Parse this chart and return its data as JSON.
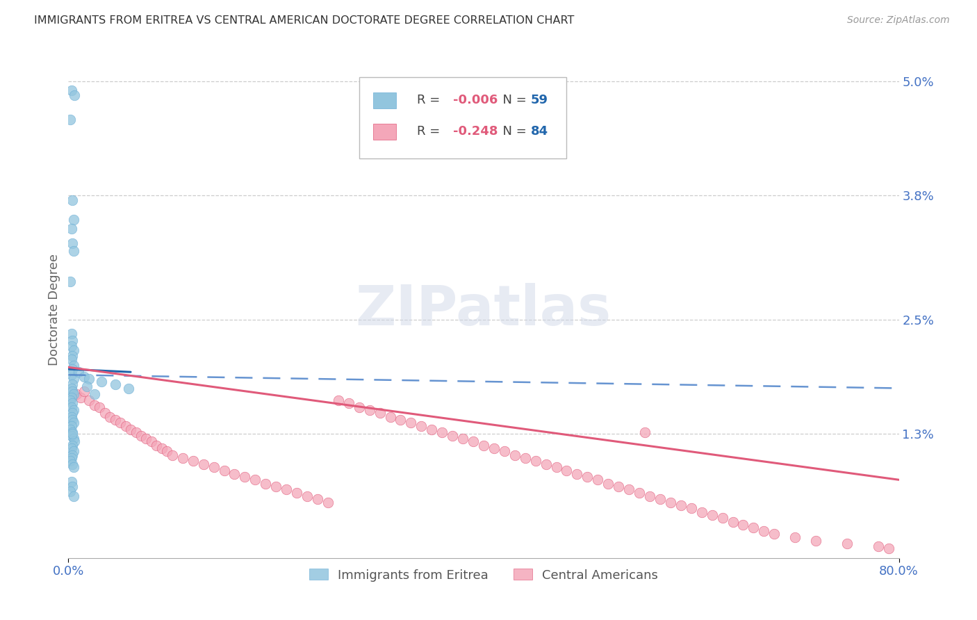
{
  "title": "IMMIGRANTS FROM ERITREA VS CENTRAL AMERICAN DOCTORATE DEGREE CORRELATION CHART",
  "source": "Source: ZipAtlas.com",
  "ylabel": "Doctorate Degree",
  "xlim": [
    0.0,
    80.0
  ],
  "ylim": [
    0.0,
    5.2
  ],
  "yticks": [
    1.3,
    2.5,
    3.8,
    5.0
  ],
  "ytick_labels": [
    "1.3%",
    "2.5%",
    "3.8%",
    "5.0%"
  ],
  "xticks": [
    0.0,
    80.0
  ],
  "xtick_labels": [
    "0.0%",
    "80.0%"
  ],
  "series1_name": "Immigrants from Eritrea",
  "series1_color": "#92c5de",
  "series1_edge": "#6baed6",
  "series1_R": "-0.006",
  "series1_N": "59",
  "series2_name": "Central Americans",
  "series2_color": "#f4a7b9",
  "series2_edge": "#e05a7a",
  "series2_R": "-0.248",
  "series2_N": "84",
  "watermark": "ZIPatlas",
  "background_color": "#ffffff",
  "grid_color": "#c8c8c8",
  "title_color": "#333333",
  "axis_label_color": "#666666",
  "tick_color": "#4472c4",
  "trend1_color": "#2166ac",
  "trend2_color": "#e05a7a",
  "trend1_dash_color": "#5588cc",
  "series1_x": [
    0.3,
    0.6,
    0.2,
    0.4,
    0.5,
    0.3,
    0.4,
    0.5,
    0.2,
    0.3,
    0.4,
    0.3,
    0.5,
    0.4,
    0.3,
    0.5,
    0.4,
    0.3,
    0.5,
    0.4,
    0.3,
    0.4,
    0.5,
    0.3,
    0.2,
    0.4,
    0.3,
    0.5,
    0.4,
    0.3,
    0.4,
    0.5,
    0.3,
    0.2,
    0.4,
    0.3,
    0.5,
    0.6,
    0.4,
    0.3,
    0.5,
    0.4,
    0.3,
    0.2,
    0.4,
    0.5,
    0.3,
    0.4,
    0.2,
    0.5,
    1.0,
    1.5,
    2.0,
    3.2,
    4.5,
    5.8,
    1.8,
    2.5,
    0.4
  ],
  "series1_y": [
    4.9,
    4.85,
    4.6,
    3.75,
    3.55,
    3.45,
    3.3,
    3.22,
    2.9,
    2.35,
    2.28,
    2.22,
    2.18,
    2.12,
    2.08,
    2.02,
    1.98,
    1.92,
    1.88,
    1.82,
    1.78,
    1.75,
    1.72,
    1.68,
    1.65,
    1.62,
    1.58,
    1.55,
    1.52,
    1.48,
    1.45,
    1.42,
    1.38,
    1.35,
    1.32,
    1.28,
    1.25,
    1.22,
    1.18,
    1.15,
    1.12,
    1.08,
    1.05,
    1.02,
    0.98,
    0.95,
    0.8,
    0.75,
    0.7,
    0.65,
    1.95,
    1.9,
    1.88,
    1.85,
    1.82,
    1.78,
    1.8,
    1.72,
    1.3
  ],
  "series2_x": [
    0.8,
    1.2,
    1.5,
    2.0,
    2.5,
    3.0,
    3.5,
    4.0,
    4.5,
    5.0,
    5.5,
    6.0,
    6.5,
    7.0,
    7.5,
    8.0,
    8.5,
    9.0,
    9.5,
    10.0,
    11.0,
    12.0,
    13.0,
    14.0,
    15.0,
    16.0,
    17.0,
    18.0,
    19.0,
    20.0,
    21.0,
    22.0,
    23.0,
    24.0,
    25.0,
    26.0,
    27.0,
    28.0,
    29.0,
    30.0,
    31.0,
    32.0,
    33.0,
    34.0,
    35.0,
    36.0,
    37.0,
    38.0,
    39.0,
    40.0,
    41.0,
    42.0,
    43.0,
    44.0,
    45.0,
    46.0,
    47.0,
    48.0,
    49.0,
    50.0,
    51.0,
    52.0,
    53.0,
    54.0,
    55.0,
    56.0,
    57.0,
    58.0,
    59.0,
    60.0,
    61.0,
    62.0,
    63.0,
    64.0,
    65.0,
    66.0,
    67.0,
    68.0,
    70.0,
    72.0,
    75.0,
    78.0,
    79.0,
    55.5
  ],
  "series2_y": [
    1.72,
    1.68,
    1.75,
    1.65,
    1.6,
    1.58,
    1.52,
    1.48,
    1.45,
    1.42,
    1.38,
    1.35,
    1.32,
    1.28,
    1.25,
    1.22,
    1.18,
    1.15,
    1.12,
    1.08,
    1.05,
    1.02,
    0.98,
    0.95,
    0.92,
    0.88,
    0.85,
    0.82,
    0.78,
    0.75,
    0.72,
    0.68,
    0.65,
    0.62,
    0.58,
    1.65,
    1.62,
    1.58,
    1.55,
    1.52,
    1.48,
    1.45,
    1.42,
    1.38,
    1.35,
    1.32,
    1.28,
    1.25,
    1.22,
    1.18,
    1.15,
    1.12,
    1.08,
    1.05,
    1.02,
    0.98,
    0.95,
    0.92,
    0.88,
    0.85,
    0.82,
    0.78,
    0.75,
    0.72,
    0.68,
    0.65,
    0.62,
    0.58,
    0.55,
    0.52,
    0.48,
    0.45,
    0.42,
    0.38,
    0.35,
    0.32,
    0.28,
    0.25,
    0.22,
    0.18,
    0.15,
    0.12,
    0.1,
    1.32
  ],
  "trend1_x0": 0.0,
  "trend1_x1": 6.0,
  "trend1_y0": 1.98,
  "trend1_y1": 1.95,
  "trend1_dash_x0": 0.0,
  "trend1_dash_x1": 80.0,
  "trend1_dash_y0": 1.92,
  "trend1_dash_y1": 1.78,
  "trend2_x0": 0.0,
  "trend2_x1": 80.0,
  "trend2_y0": 2.0,
  "trend2_y1": 0.82
}
